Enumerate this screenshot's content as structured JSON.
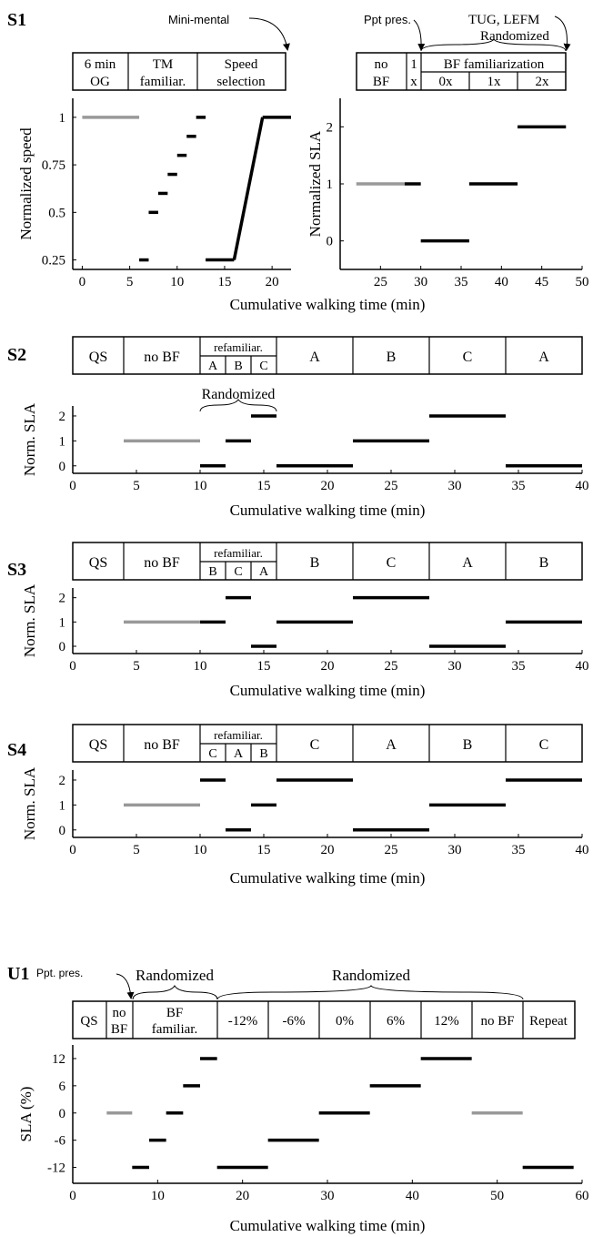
{
  "colors": {
    "baseline": "#999999",
    "segment": "#000000"
  },
  "panel_labels": {
    "s1": "S1",
    "s2": "S2",
    "s3": "S3",
    "s4": "S4",
    "u1": "U1"
  },
  "annotations": {
    "s1_mini_mental": "Mini-mental",
    "s1_ppt_pres": "Ppt pres.",
    "s1_tug": "TUG, LEFM",
    "s1_randomized": "Randomized",
    "s2_randomized": "Randomized",
    "u1_ppt_pres": "Ppt. pres.",
    "u1_randomized_1": "Randomized",
    "u1_randomized_2": "Randomized"
  },
  "timeline": {
    "s1_left": [
      {
        "top": "6 min",
        "bottom": "OG"
      },
      {
        "top": "TM",
        "bottom": "familiar."
      },
      {
        "top": "Speed",
        "bottom": "selection"
      }
    ],
    "s1_right": {
      "nobf_top": "no",
      "nobf_bottom": "BF",
      "one_top": "1",
      "one_bottom": "x",
      "bf_header": "BF familiarization",
      "bf_subs": [
        "0x",
        "1x",
        "2x"
      ]
    },
    "s2": {
      "main": [
        "QS",
        "no BF"
      ],
      "refam": "refamiliar.",
      "refam_subs": [
        "A",
        "B",
        "C"
      ],
      "cond": [
        "A",
        "B",
        "C",
        "A"
      ]
    },
    "s3": {
      "main": [
        "QS",
        "no BF"
      ],
      "refam": "refamiliar.",
      "refam_subs": [
        "B",
        "C",
        "A"
      ],
      "cond": [
        "B",
        "C",
        "A",
        "B"
      ]
    },
    "s4": {
      "main": [
        "QS",
        "no BF"
      ],
      "refam": "refamiliar.",
      "refam_subs": [
        "C",
        "A",
        "B"
      ],
      "cond": [
        "C",
        "A",
        "B",
        "C"
      ]
    },
    "u1": [
      {
        "top": "QS",
        "bottom": ""
      },
      {
        "top": "no",
        "bottom": "BF"
      },
      {
        "top": "BF",
        "bottom": "familiar."
      },
      {
        "top": "-12%",
        "bottom": ""
      },
      {
        "top": "-6%",
        "bottom": ""
      },
      {
        "top": "0%",
        "bottom": ""
      },
      {
        "top": "6%",
        "bottom": ""
      },
      {
        "top": "12%",
        "bottom": ""
      },
      {
        "top": "no BF",
        "bottom": ""
      },
      {
        "top": "Repeat",
        "bottom": ""
      }
    ]
  },
  "chart_data": [
    {
      "id": "s1_left",
      "type": "line",
      "xlabel": "",
      "ylabel": "Normalized speed",
      "xlim": [
        -1,
        22
      ],
      "ylim": [
        0.2,
        1.1
      ],
      "xticks": [
        0,
        5,
        10,
        15,
        20
      ],
      "yticks": [
        0.25,
        0.5,
        0.75,
        1
      ],
      "ytick_labels": [
        "0.25",
        "0.5",
        "0.75",
        "1"
      ],
      "segments": [
        {
          "x": [
            0,
            6
          ],
          "y": [
            1,
            1
          ],
          "baseline": true
        },
        {
          "x": [
            6,
            7
          ],
          "y": [
            0.25,
            0.25
          ]
        },
        {
          "x": [
            7,
            8
          ],
          "y": [
            0.5,
            0.5
          ]
        },
        {
          "x": [
            8,
            9
          ],
          "y": [
            0.6,
            0.6
          ]
        },
        {
          "x": [
            9,
            10
          ],
          "y": [
            0.7,
            0.7
          ]
        },
        {
          "x": [
            10,
            11
          ],
          "y": [
            0.8,
            0.8
          ]
        },
        {
          "x": [
            11,
            12
          ],
          "y": [
            0.9,
            0.9
          ]
        },
        {
          "x": [
            12,
            13
          ],
          "y": [
            1,
            1
          ]
        },
        {
          "x": [
            13,
            16
          ],
          "y": [
            0.25,
            0.25
          ]
        },
        {
          "x": [
            16,
            19
          ],
          "y": [
            0.25,
            1
          ]
        },
        {
          "x": [
            19,
            22
          ],
          "y": [
            1,
            1
          ]
        }
      ]
    },
    {
      "id": "s1_right",
      "type": "line",
      "xlabel": "",
      "ylabel": "Normalized SLA",
      "xlim": [
        20,
        50
      ],
      "ylim": [
        -0.5,
        2.5
      ],
      "xticks": [
        25,
        30,
        35,
        40,
        45,
        50
      ],
      "yticks": [
        0,
        1,
        2
      ],
      "ytick_labels": [
        "0",
        "1",
        "2"
      ],
      "segments": [
        {
          "x": [
            22,
            28
          ],
          "y": [
            1,
            1
          ],
          "baseline": true
        },
        {
          "x": [
            28,
            30
          ],
          "y": [
            1,
            1
          ]
        },
        {
          "x": [
            30,
            36
          ],
          "y": [
            0,
            0
          ]
        },
        {
          "x": [
            36,
            42
          ],
          "y": [
            1,
            1
          ]
        },
        {
          "x": [
            42,
            48
          ],
          "y": [
            2,
            2
          ]
        }
      ]
    },
    {
      "id": "s1_axis",
      "type": "line",
      "xlabel": "Cumulative walking time (min)"
    },
    {
      "id": "s2",
      "type": "line",
      "xlabel": "Cumulative walking time (min)",
      "ylabel": "Norm. SLA",
      "xlim": [
        0,
        40
      ],
      "ylim": [
        -0.3,
        2.4
      ],
      "xticks": [
        0,
        5,
        10,
        15,
        20,
        25,
        30,
        35,
        40
      ],
      "yticks": [
        0,
        1,
        2
      ],
      "ytick_labels": [
        "0",
        "1",
        "2"
      ],
      "segments": [
        {
          "x": [
            4,
            10
          ],
          "y": [
            1,
            1
          ],
          "baseline": true
        },
        {
          "x": [
            10,
            12
          ],
          "y": [
            0,
            0
          ]
        },
        {
          "x": [
            12,
            14
          ],
          "y": [
            1,
            1
          ]
        },
        {
          "x": [
            14,
            16
          ],
          "y": [
            2,
            2
          ]
        },
        {
          "x": [
            16,
            22
          ],
          "y": [
            0,
            0
          ]
        },
        {
          "x": [
            22,
            28
          ],
          "y": [
            1,
            1
          ]
        },
        {
          "x": [
            28,
            34
          ],
          "y": [
            2,
            2
          ]
        },
        {
          "x": [
            34,
            40
          ],
          "y": [
            0,
            0
          ]
        }
      ]
    },
    {
      "id": "s3",
      "type": "line",
      "xlabel": "Cumulative walking time (min)",
      "ylabel": "Norm. SLA",
      "xlim": [
        0,
        40
      ],
      "ylim": [
        -0.3,
        2.4
      ],
      "xticks": [
        0,
        5,
        10,
        15,
        20,
        25,
        30,
        35,
        40
      ],
      "yticks": [
        0,
        1,
        2
      ],
      "ytick_labels": [
        "0",
        "1",
        "2"
      ],
      "segments": [
        {
          "x": [
            4,
            10
          ],
          "y": [
            1,
            1
          ],
          "baseline": true
        },
        {
          "x": [
            10,
            12
          ],
          "y": [
            1,
            1
          ]
        },
        {
          "x": [
            12,
            14
          ],
          "y": [
            2,
            2
          ]
        },
        {
          "x": [
            14,
            16
          ],
          "y": [
            0,
            0
          ]
        },
        {
          "x": [
            16,
            22
          ],
          "y": [
            1,
            1
          ]
        },
        {
          "x": [
            22,
            28
          ],
          "y": [
            2,
            2
          ]
        },
        {
          "x": [
            28,
            34
          ],
          "y": [
            0,
            0
          ]
        },
        {
          "x": [
            34,
            40
          ],
          "y": [
            1,
            1
          ]
        }
      ]
    },
    {
      "id": "s4",
      "type": "line",
      "xlabel": "Cumulative walking time (min)",
      "ylabel": "Norm. SLA",
      "xlim": [
        0,
        40
      ],
      "ylim": [
        -0.3,
        2.4
      ],
      "xticks": [
        0,
        5,
        10,
        15,
        20,
        25,
        30,
        35,
        40
      ],
      "yticks": [
        0,
        1,
        2
      ],
      "ytick_labels": [
        "0",
        "1",
        "2"
      ],
      "segments": [
        {
          "x": [
            4,
            10
          ],
          "y": [
            1,
            1
          ],
          "baseline": true
        },
        {
          "x": [
            10,
            12
          ],
          "y": [
            2,
            2
          ]
        },
        {
          "x": [
            12,
            14
          ],
          "y": [
            0,
            0
          ]
        },
        {
          "x": [
            14,
            16
          ],
          "y": [
            1,
            1
          ]
        },
        {
          "x": [
            16,
            22
          ],
          "y": [
            2,
            2
          ]
        },
        {
          "x": [
            22,
            28
          ],
          "y": [
            0,
            0
          ]
        },
        {
          "x": [
            28,
            34
          ],
          "y": [
            1,
            1
          ]
        },
        {
          "x": [
            34,
            40
          ],
          "y": [
            2,
            2
          ]
        }
      ]
    },
    {
      "id": "u1",
      "type": "line",
      "xlabel": "Cumulative walking time (min)",
      "ylabel": "SLA (%)",
      "xlim": [
        0,
        60
      ],
      "ylim": [
        -15.5,
        15
      ],
      "xticks": [
        0,
        10,
        20,
        30,
        40,
        50,
        60
      ],
      "yticks": [
        -12,
        -6,
        0,
        6,
        12
      ],
      "ytick_labels": [
        "-12",
        "-6",
        "0",
        "6",
        "12"
      ],
      "segments": [
        {
          "x": [
            4,
            7
          ],
          "y": [
            0,
            0
          ],
          "baseline": true
        },
        {
          "x": [
            7,
            9
          ],
          "y": [
            -12,
            -12
          ]
        },
        {
          "x": [
            9,
            11
          ],
          "y": [
            -6,
            -6
          ]
        },
        {
          "x": [
            11,
            13
          ],
          "y": [
            0,
            0
          ]
        },
        {
          "x": [
            13,
            15
          ],
          "y": [
            6,
            6
          ]
        },
        {
          "x": [
            15,
            17
          ],
          "y": [
            12,
            12
          ]
        },
        {
          "x": [
            17,
            23
          ],
          "y": [
            -12,
            -12
          ]
        },
        {
          "x": [
            23,
            29
          ],
          "y": [
            -6,
            -6
          ]
        },
        {
          "x": [
            29,
            35
          ],
          "y": [
            0,
            0
          ]
        },
        {
          "x": [
            35,
            41
          ],
          "y": [
            6,
            6
          ]
        },
        {
          "x": [
            41,
            47
          ],
          "y": [
            12,
            12
          ]
        },
        {
          "x": [
            47,
            53
          ],
          "y": [
            0,
            0
          ],
          "baseline": true
        },
        {
          "x": [
            53,
            59
          ],
          "y": [
            -12,
            -12
          ]
        }
      ]
    }
  ]
}
